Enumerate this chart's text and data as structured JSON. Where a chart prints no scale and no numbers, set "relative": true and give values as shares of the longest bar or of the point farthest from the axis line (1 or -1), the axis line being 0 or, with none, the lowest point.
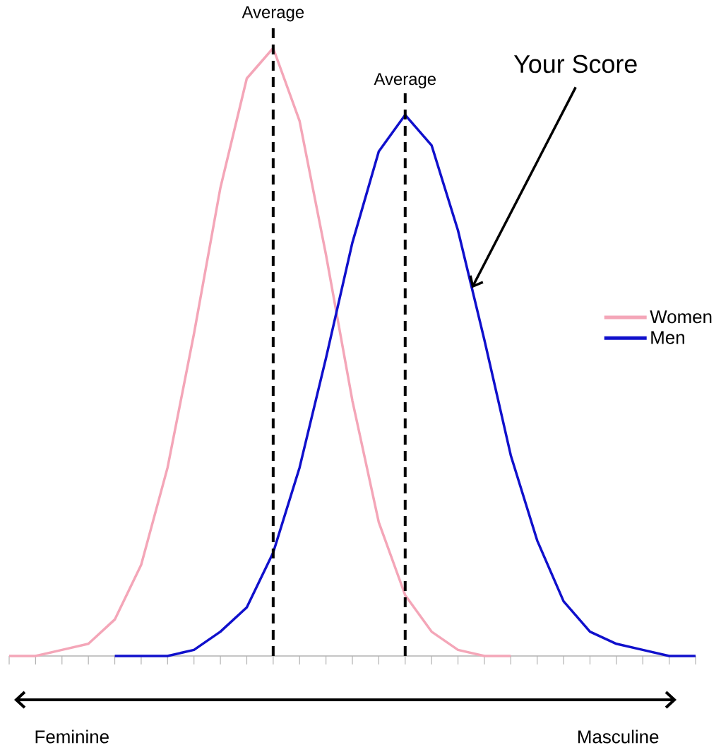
{
  "chart_data": {
    "type": "line",
    "relative": true,
    "categories": [
      null,
      null,
      null,
      null,
      null,
      null,
      null,
      null,
      null,
      null,
      null,
      null,
      null,
      null,
      null,
      null,
      null,
      null,
      null,
      null,
      null,
      null,
      null,
      null,
      null,
      null,
      null
    ],
    "series": [
      {
        "name": "Women",
        "color": "#f4a6b8",
        "values": [
          0.0,
          0.0,
          0.01,
          0.02,
          0.06,
          0.15,
          0.31,
          0.53,
          0.77,
          0.95,
          1.0,
          0.88,
          0.66,
          0.42,
          0.22,
          0.1,
          0.04,
          0.01,
          0.0,
          0.0,
          null,
          null,
          null,
          null,
          null,
          null,
          null
        ]
      },
      {
        "name": "Men",
        "color": "#1010cc",
        "values": [
          null,
          null,
          null,
          null,
          0.0,
          0.0,
          0.0,
          0.01,
          0.04,
          0.08,
          0.17,
          0.31,
          0.49,
          0.68,
          0.83,
          0.89,
          0.84,
          0.7,
          0.52,
          0.33,
          0.19,
          0.09,
          0.04,
          0.02,
          0.01,
          0.0,
          0.0
        ]
      }
    ],
    "annotations": [
      "Average",
      "Average",
      "Your Score",
      "Feminine",
      "Masculine"
    ],
    "legend": "right"
  }
}
